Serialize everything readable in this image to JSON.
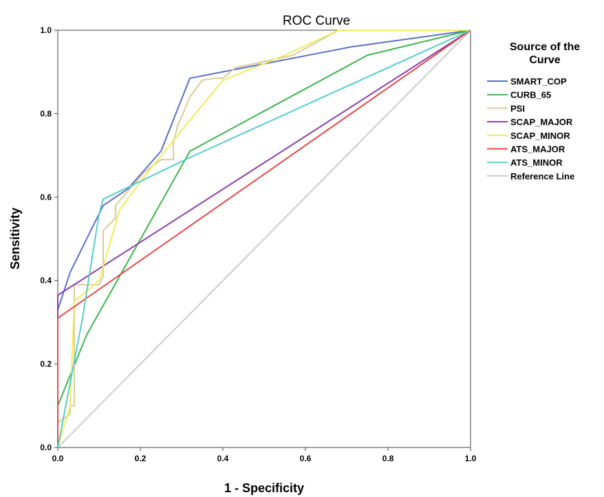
{
  "chart_data": {
    "type": "line",
    "title": "ROC Curve",
    "xlabel": "1 - Specificity",
    "ylabel": "Sensitivity",
    "xlim": [
      0.0,
      1.0
    ],
    "ylim": [
      0.0,
      1.0
    ],
    "xticks": [
      "0.0",
      "0.2",
      "0.4",
      "0.6",
      "0.8",
      "1.0"
    ],
    "yticks": [
      "0.0",
      "0.2",
      "0.4",
      "0.6",
      "0.8",
      "1.0"
    ],
    "grid": false,
    "legend": {
      "title_line1": "Source of the",
      "title_line2": "Curve",
      "position": "right"
    },
    "series": [
      {
        "name": "SMART_COP",
        "color": "#5a6fc7",
        "x": [
          0.0,
          0.0,
          0.03,
          0.11,
          0.17,
          0.25,
          0.32,
          0.71,
          1.0
        ],
        "y": [
          0.0,
          0.33,
          0.42,
          0.58,
          0.62,
          0.71,
          0.885,
          0.96,
          1.0
        ]
      },
      {
        "name": "CURB_65",
        "color": "#3cb44b",
        "x": [
          0.0,
          0.0,
          0.07,
          0.32,
          0.75,
          1.0
        ],
        "y": [
          0.0,
          0.1,
          0.27,
          0.71,
          0.94,
          1.0
        ]
      },
      {
        "name": "PSI",
        "color": "#d6cc99",
        "x": [
          0.0,
          0.0,
          0.03,
          0.03,
          0.04,
          0.04,
          0.1,
          0.11,
          0.11,
          0.14,
          0.14,
          0.21,
          0.25,
          0.28,
          0.28,
          0.29,
          0.32,
          0.35,
          0.38,
          0.4,
          0.43,
          0.57,
          0.68,
          1.0
        ],
        "y": [
          0.0,
          0.06,
          0.08,
          0.1,
          0.1,
          0.39,
          0.39,
          0.41,
          0.52,
          0.55,
          0.58,
          0.66,
          0.69,
          0.69,
          0.73,
          0.77,
          0.84,
          0.88,
          0.885,
          0.885,
          0.91,
          0.94,
          1.0,
          1.0
        ]
      },
      {
        "name": "SCAP_MAJOR",
        "color": "#8b3fa8",
        "x": [
          0.0,
          0.0,
          1.0
        ],
        "y": [
          0.0,
          0.365,
          1.0
        ]
      },
      {
        "name": "SCAP_MINOR",
        "color": "#f0ec5a",
        "x": [
          0.0,
          0.03,
          0.04,
          0.1,
          0.15,
          0.21,
          0.3,
          0.4,
          0.55,
          0.68,
          1.0
        ],
        "y": [
          0.0,
          0.1,
          0.35,
          0.4,
          0.57,
          0.65,
          0.76,
          0.88,
          0.94,
          1.0,
          1.0
        ]
      },
      {
        "name": "ATS_MAJOR",
        "color": "#e8474a",
        "x": [
          0.0,
          0.0,
          1.0
        ],
        "y": [
          0.0,
          0.31,
          1.0
        ]
      },
      {
        "name": "ATS_MINOR",
        "color": "#55cccc",
        "x": [
          0.0,
          0.06,
          0.1,
          0.11,
          0.32,
          1.0
        ],
        "y": [
          0.0,
          0.31,
          0.56,
          0.595,
          0.695,
          1.0
        ]
      },
      {
        "name": "Reference Line",
        "color": "#cccccc",
        "x": [
          0.0,
          1.0
        ],
        "y": [
          0.0,
          1.0
        ]
      }
    ]
  }
}
